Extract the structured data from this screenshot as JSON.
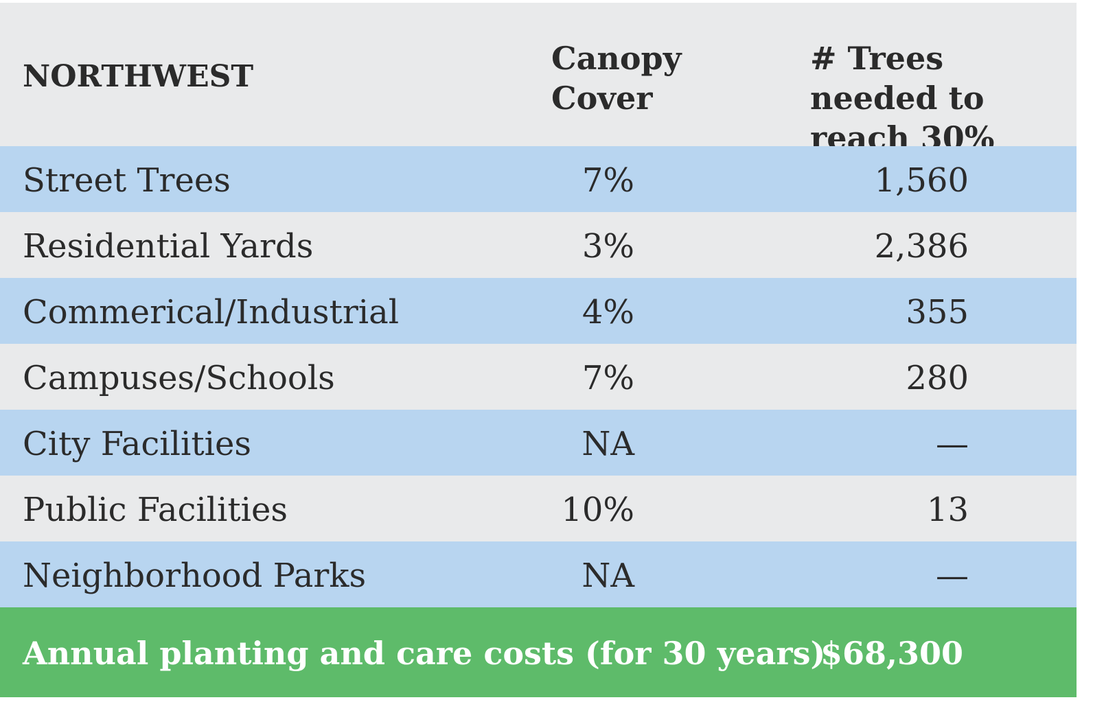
{
  "chart_data": {
    "type": "table",
    "header": {
      "region": "NORTHWEST",
      "canopy_cover": "Canopy Cover",
      "trees_needed": "# Trees needed to reach 30%"
    },
    "rows": [
      {
        "category": "Street Trees",
        "canopy_cover": "7%",
        "trees_needed": "1,560"
      },
      {
        "category": "Residential Yards",
        "canopy_cover": "3%",
        "trees_needed": "2,386"
      },
      {
        "category": "Commerical/Industrial",
        "canopy_cover": "4%",
        "trees_needed": "355"
      },
      {
        "category": "Campuses/Schools",
        "canopy_cover": "7%",
        "trees_needed": "280"
      },
      {
        "category": "City Facilities",
        "canopy_cover": "NA",
        "trees_needed": "—"
      },
      {
        "category": "Public Facilities",
        "canopy_cover": "10%",
        "trees_needed": "13"
      },
      {
        "category": "Neighborhood Parks",
        "canopy_cover": "NA",
        "trees_needed": "—"
      }
    ],
    "footer": {
      "label": "Annual planting and care costs (for 30 years)",
      "value": "$68,300"
    },
    "colors": {
      "header_bg": "#e9eaeb",
      "row_blue": "#b8d5f0",
      "row_gray": "#e9eaeb",
      "footer_bg": "#5ebb6a",
      "text": "#2b2b2b",
      "footer_text": "#ffffff"
    }
  }
}
